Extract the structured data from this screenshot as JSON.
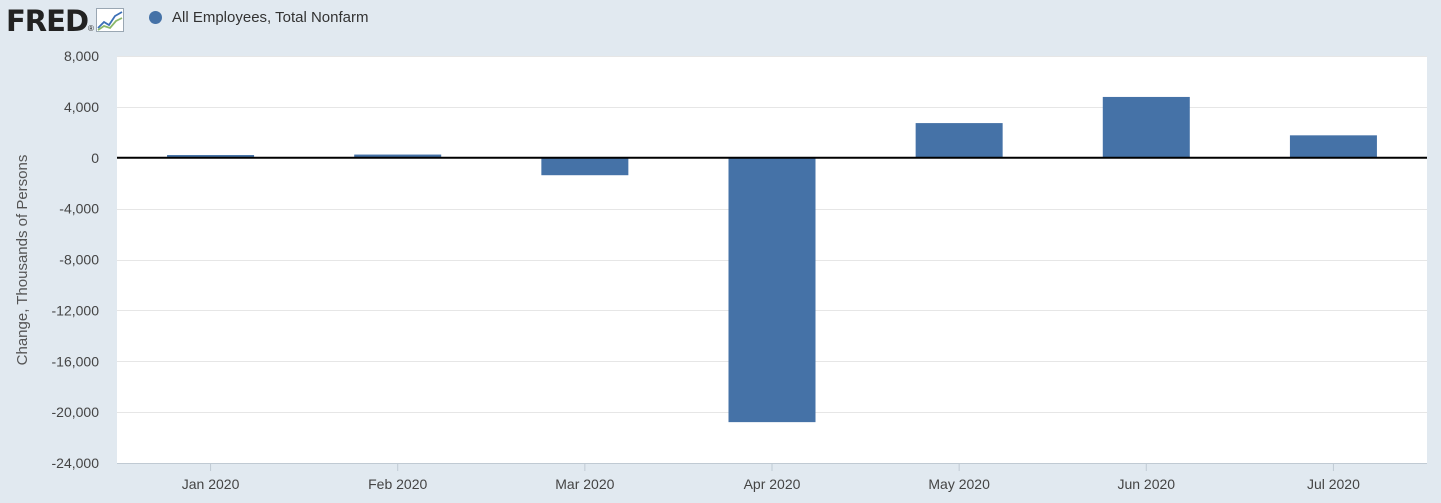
{
  "header": {
    "logo_text": "FRED",
    "logo_mark": "®",
    "logo_icon": "line-chart-icon"
  },
  "legend": {
    "label": "All Employees, Total Nonfarm",
    "color": "#4572a7"
  },
  "colors": {
    "bar": "#4572a7",
    "plot_background": "#ffffff",
    "page_background": "#e1e9f0",
    "gridline": "#e6e6e6",
    "zero_line": "#000000"
  },
  "chart_data": {
    "type": "bar",
    "title": "",
    "xlabel": "",
    "ylabel": "Change, Thousands of Persons",
    "categories": [
      "Jan 2020",
      "Feb 2020",
      "Mar 2020",
      "Apr 2020",
      "May 2020",
      "Jun 2020",
      "Jul 2020"
    ],
    "series": [
      {
        "name": "All Employees, Total Nonfarm",
        "values": [
          214,
          251,
          -1373,
          -20787,
          2725,
          4781,
          1763
        ]
      }
    ],
    "ylim": [
      -24000,
      8000
    ],
    "yticks": [
      8000,
      4000,
      0,
      -4000,
      -8000,
      -12000,
      -16000,
      -20000,
      -24000
    ],
    "ytick_labels": [
      "8,000",
      "4,000",
      "0",
      "-4,000",
      "-8,000",
      "-12,000",
      "-16,000",
      "-20,000",
      "-24,000"
    ],
    "grid": true,
    "legend_position": "top-left"
  }
}
